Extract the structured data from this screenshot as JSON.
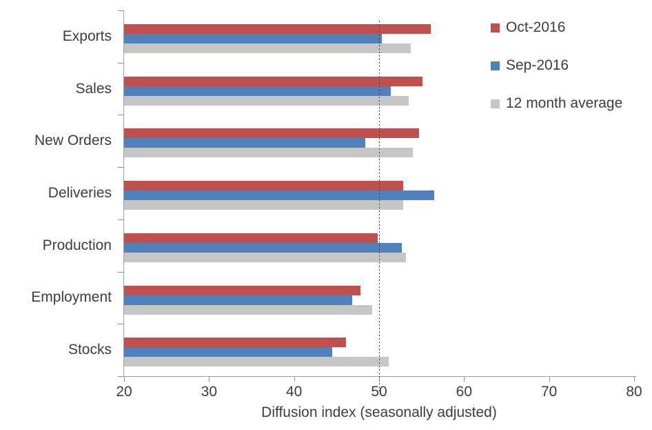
{
  "chart_data": {
    "type": "bar",
    "orientation": "horizontal",
    "title": "",
    "xlabel": "Diffusion index (seasonally adjusted)",
    "ylabel": "",
    "xlim": [
      20,
      80
    ],
    "xticks": [
      20,
      30,
      40,
      50,
      60,
      70,
      80
    ],
    "reference_line": 50,
    "grid": false,
    "legend_position": "right-top",
    "categories": [
      "Exports",
      "Sales",
      "New Orders",
      "Deliveries",
      "Production",
      "Employment",
      "Stocks"
    ],
    "series": [
      {
        "name": "Oct-2016",
        "color": "#C0504D",
        "values": [
          56.1,
          55.1,
          54.7,
          52.8,
          49.8,
          47.8,
          46.1
        ]
      },
      {
        "name": "Sep-2016",
        "color": "#4F81BD",
        "values": [
          50.3,
          51.4,
          48.4,
          56.5,
          52.7,
          46.8,
          44.5
        ]
      },
      {
        "name": "12 month average",
        "color": "#C6C6C6",
        "values": [
          53.7,
          53.5,
          54.0,
          52.8,
          53.2,
          49.2,
          51.1
        ]
      }
    ]
  },
  "colors": {
    "axis_line": "#a3a3a3",
    "tick": "#939393",
    "text": "#3d3d3d",
    "reference_line": "#404040",
    "background": "#ffffff"
  }
}
